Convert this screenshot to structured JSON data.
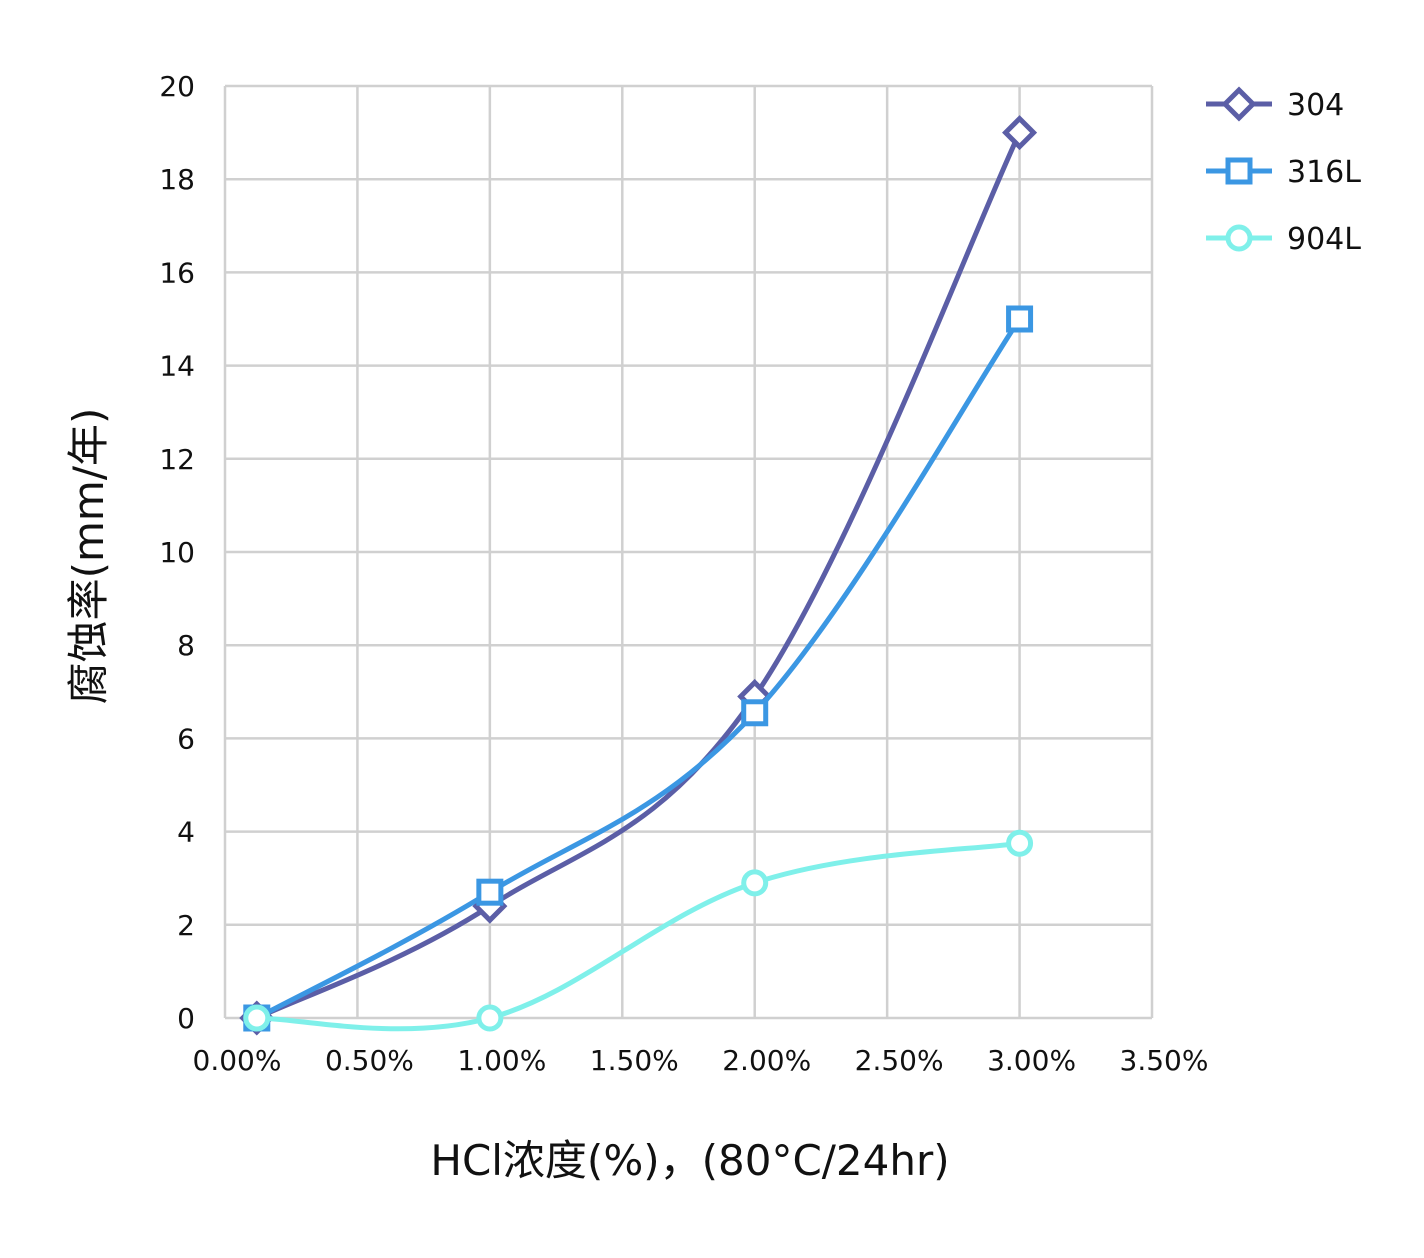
{
  "chart_data": {
    "type": "line",
    "title": "",
    "xlabel": "HCl浓度(%)，(80°C/24hr)",
    "ylabel": "腐蚀率(mm/年)",
    "x_ticks": [
      "0.00%",
      "0.50%",
      "1.00%",
      "1.50%",
      "2.00%",
      "2.50%",
      "3.00%",
      "3.50%"
    ],
    "y_ticks": [
      "0",
      "2",
      "4",
      "6",
      "8",
      "10",
      "12",
      "14",
      "16",
      "18",
      "20"
    ],
    "xlim": [
      0,
      3.5
    ],
    "ylim": [
      0,
      20
    ],
    "grid": true,
    "legend_position": "right-top",
    "smooth": true,
    "x": [
      0.12,
      1.0,
      2.0,
      3.0
    ],
    "series": [
      {
        "name": "304",
        "marker": "diamond",
        "color": "#5b5ea6",
        "values": [
          0,
          2.4,
          6.9,
          19.0
        ]
      },
      {
        "name": "316L",
        "marker": "square",
        "color": "#3b97e3",
        "values": [
          0,
          2.7,
          6.55,
          15.0
        ]
      },
      {
        "name": "904L",
        "marker": "circle",
        "color": "#7ff0ea",
        "values": [
          0,
          0,
          2.9,
          3.75
        ]
      }
    ]
  }
}
